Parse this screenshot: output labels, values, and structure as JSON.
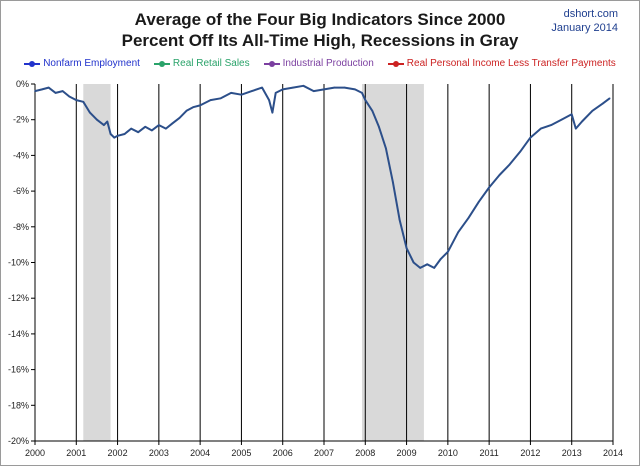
{
  "header": {
    "title_line1": "Average of the Four Big Indicators Since 2000",
    "title_line2": "Percent Off Its All-Time High, Recessions in Gray",
    "source": "dshort.com",
    "date": "January 2014"
  },
  "colors": {
    "recession_fill": "#d9d9d9",
    "main_line": "#2c4f8a",
    "axis": "#000000",
    "year_gridline": "#000000"
  },
  "legend": [
    {
      "label": "Nonfarm Employment",
      "color": "#2233cc"
    },
    {
      "label": "Real Retail Sales",
      "color": "#2aa36a"
    },
    {
      "label": "Industrial Production",
      "color": "#7b3fa0"
    },
    {
      "label": "Real Personal Income Less Transfer Payments",
      "color": "#cc2222"
    }
  ],
  "chart_data": {
    "type": "line",
    "title": "Average of the Four Big Indicators Since 2000",
    "subtitle": "Percent Off Its All-Time High, Recessions in Gray",
    "xlabel": "",
    "ylabel": "",
    "xlim": [
      2000.0,
      2014.0
    ],
    "ylim": [
      -20,
      0
    ],
    "x_ticks": [
      "2000",
      "2001",
      "2002",
      "2003",
      "2004",
      "2005",
      "2006",
      "2007",
      "2008",
      "2009",
      "2010",
      "2011",
      "2012",
      "2013",
      "2014"
    ],
    "y_ticks": [
      "0%",
      "-2%",
      "-4%",
      "-6%",
      "-8%",
      "-10%",
      "-12%",
      "-14%",
      "-16%",
      "-18%",
      "-20%"
    ],
    "y_tick_values": [
      0,
      -2,
      -4,
      -6,
      -8,
      -10,
      -12,
      -14,
      -16,
      -18,
      -20
    ],
    "grid": "vertical year lines",
    "legend_position": "top",
    "recessions": [
      [
        2001.17,
        2001.83
      ],
      [
        2007.92,
        2009.42
      ]
    ],
    "series": [
      {
        "color": "#2c4f8a",
        "x": [
          2000.0,
          2000.17,
          2000.33,
          2000.5,
          2000.67,
          2000.83,
          2001.0,
          2001.17,
          2001.33,
          2001.5,
          2001.67,
          2001.75,
          2001.83,
          2001.92,
          2002.0,
          2002.17,
          2002.33,
          2002.5,
          2002.67,
          2002.83,
          2003.0,
          2003.17,
          2003.33,
          2003.5,
          2003.67,
          2003.83,
          2004.0,
          2004.25,
          2004.5,
          2004.75,
          2005.0,
          2005.25,
          2005.5,
          2005.67,
          2005.75,
          2005.83,
          2006.0,
          2006.25,
          2006.5,
          2006.75,
          2007.0,
          2007.25,
          2007.5,
          2007.75,
          2007.92,
          2008.0,
          2008.17,
          2008.33,
          2008.5,
          2008.67,
          2008.83,
          2009.0,
          2009.17,
          2009.33,
          2009.5,
          2009.67,
          2009.83,
          2010.0,
          2010.25,
          2010.5,
          2010.75,
          2011.0,
          2011.25,
          2011.5,
          2011.75,
          2012.0,
          2012.25,
          2012.5,
          2012.75,
          2013.0,
          2013.1,
          2013.25,
          2013.5,
          2013.75,
          2013.92
        ],
        "values": [
          -0.4,
          -0.3,
          -0.2,
          -0.5,
          -0.4,
          -0.7,
          -0.9,
          -1.0,
          -1.6,
          -2.0,
          -2.3,
          -2.1,
          -2.8,
          -3.0,
          -2.9,
          -2.8,
          -2.5,
          -2.7,
          -2.4,
          -2.6,
          -2.3,
          -2.5,
          -2.2,
          -1.9,
          -1.5,
          -1.3,
          -1.2,
          -0.9,
          -0.8,
          -0.5,
          -0.6,
          -0.4,
          -0.2,
          -0.9,
          -1.6,
          -0.5,
          -0.3,
          -0.2,
          -0.1,
          -0.4,
          -0.3,
          -0.2,
          -0.2,
          -0.3,
          -0.5,
          -0.9,
          -1.5,
          -2.4,
          -3.6,
          -5.5,
          -7.6,
          -9.2,
          -10.0,
          -10.3,
          -10.1,
          -10.3,
          -9.8,
          -9.4,
          -8.3,
          -7.5,
          -6.6,
          -5.8,
          -5.1,
          -4.5,
          -3.8,
          -3.0,
          -2.5,
          -2.3,
          -2.0,
          -1.7,
          -2.5,
          -2.1,
          -1.5,
          -1.1,
          -0.8
        ]
      }
    ]
  }
}
